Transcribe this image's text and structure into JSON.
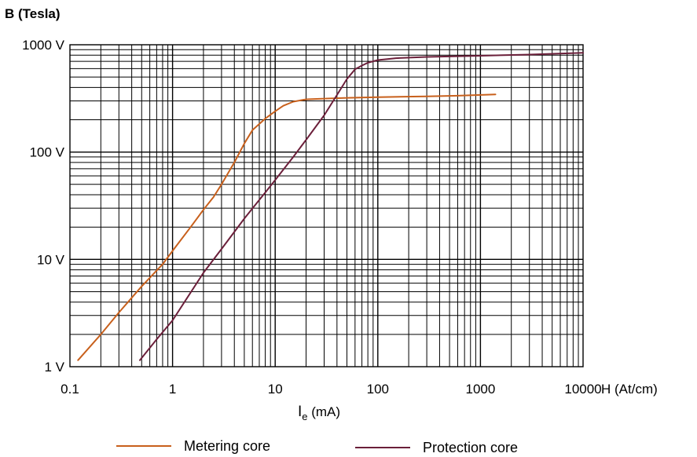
{
  "chart_data": {
    "type": "line",
    "title": "",
    "y_axis_title": "B (Tesla)",
    "x_axis_unit_label": "H (At/cm)",
    "xlabel_main": "I",
    "xlabel_sub": "e",
    "xlabel_suffix": " (mA)",
    "x_scale": "log",
    "y_scale": "log",
    "xlim": [
      0.1,
      10000
    ],
    "ylim": [
      1,
      1000
    ],
    "grid": true,
    "x_ticks": [
      {
        "value": 0.1,
        "label": "0.1"
      },
      {
        "value": 1,
        "label": "1"
      },
      {
        "value": 10,
        "label": "10"
      },
      {
        "value": 100,
        "label": "100"
      },
      {
        "value": 1000,
        "label": "1000"
      },
      {
        "value": 10000,
        "label": "10000"
      }
    ],
    "y_ticks": [
      {
        "value": 1,
        "label": "1 V"
      },
      {
        "value": 10,
        "label": "10 V"
      },
      {
        "value": 100,
        "label": "100 V"
      },
      {
        "value": 1000,
        "label": "1000 V"
      }
    ],
    "legend_position": "bottom",
    "series": [
      {
        "name": "Metering core",
        "color": "#c8601c",
        "points": [
          [
            0.12,
            1.15
          ],
          [
            0.2,
            2.0
          ],
          [
            0.3,
            3.2
          ],
          [
            0.5,
            5.6
          ],
          [
            0.8,
            9.0
          ],
          [
            1.0,
            12
          ],
          [
            1.5,
            20
          ],
          [
            2.0,
            29
          ],
          [
            2.5,
            38
          ],
          [
            3.0,
            50
          ],
          [
            4.0,
            80
          ],
          [
            5.0,
            120
          ],
          [
            6.0,
            160
          ],
          [
            8.0,
            205
          ],
          [
            10,
            240
          ],
          [
            12,
            270
          ],
          [
            15,
            295
          ],
          [
            20,
            310
          ],
          [
            30,
            315
          ],
          [
            50,
            320
          ],
          [
            100,
            325
          ],
          [
            300,
            330
          ],
          [
            600,
            335
          ],
          [
            1400,
            345
          ]
        ]
      },
      {
        "name": "Protection core",
        "color": "#6b1f3a",
        "points": [
          [
            0.48,
            1.15
          ],
          [
            0.7,
            1.8
          ],
          [
            1.0,
            2.7
          ],
          [
            2.0,
            7.5
          ],
          [
            3.0,
            12.5
          ],
          [
            5.0,
            24
          ],
          [
            8.0,
            42
          ],
          [
            10,
            55
          ],
          [
            15,
            90
          ],
          [
            20,
            130
          ],
          [
            30,
            220
          ],
          [
            40,
            340
          ],
          [
            50,
            480
          ],
          [
            60,
            590
          ],
          [
            70,
            640
          ],
          [
            80,
            680
          ],
          [
            100,
            720
          ],
          [
            150,
            750
          ],
          [
            300,
            770
          ],
          [
            1000,
            790
          ],
          [
            3000,
            810
          ],
          [
            10000,
            840
          ]
        ]
      }
    ]
  }
}
